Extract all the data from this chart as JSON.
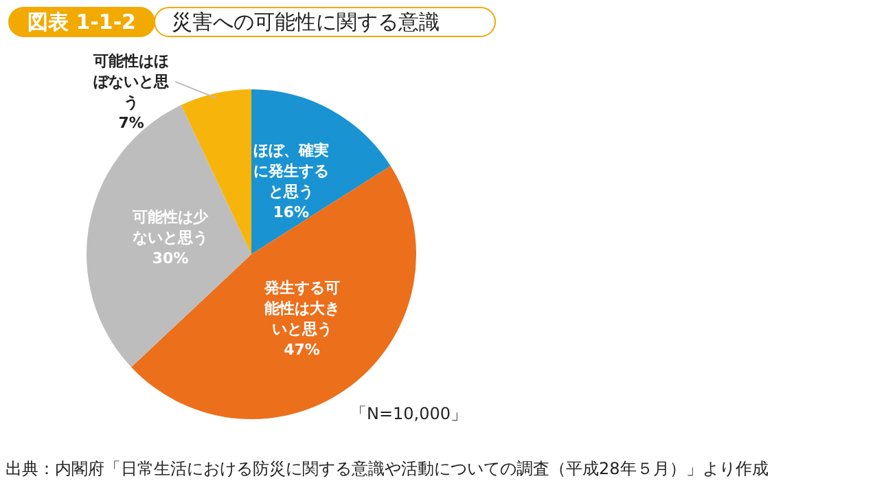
{
  "chart_data": {
    "type": "pie",
    "title": "図表 1-1-2",
    "subtitle": "災害への可能性に関する意識",
    "categories": [
      "ほぼ、確実に発生すると思う",
      "発生する可能性は大きいと思う",
      "可能性は少ないと思う",
      "可能性はほぼないと思う"
    ],
    "values": [
      16,
      47,
      30,
      7
    ],
    "value_labels": [
      "16%",
      "47%",
      "30%",
      "7%"
    ],
    "colors": [
      "#1a93d3",
      "#ec6f1c",
      "#bdbdbd",
      "#f7b50c"
    ],
    "legend": false,
    "annotations": [
      "「N=10,000」",
      "出典：内閣府「日常生活における防災に関する意識や活動についての調査（平成28年５月）」より作成"
    ]
  }
}
